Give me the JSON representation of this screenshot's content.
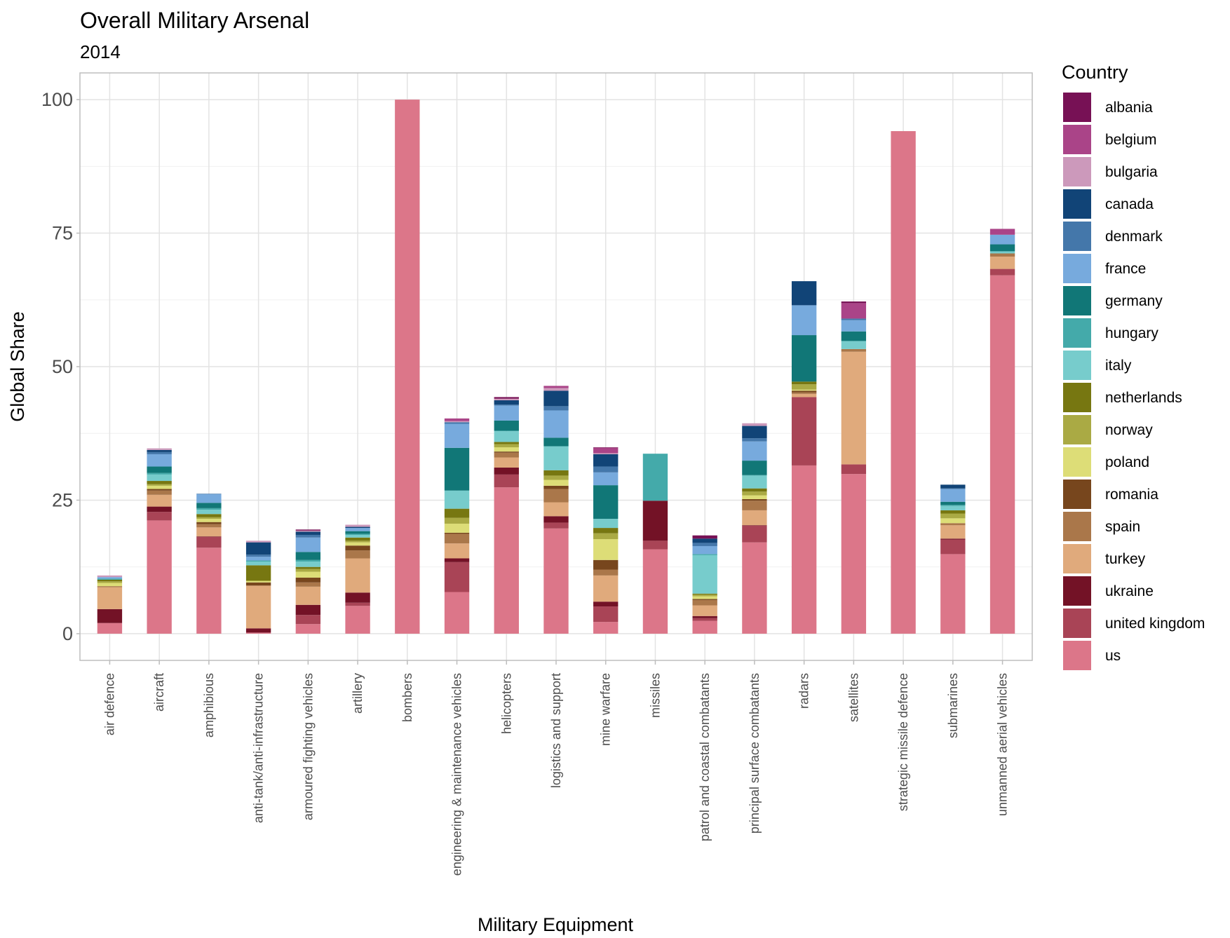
{
  "chart_data": {
    "type": "bar",
    "stacked": true,
    "title": "Overall Military Arsenal",
    "subtitle": "2014",
    "xlabel": "Military Equipment",
    "ylabel": "Global Share",
    "ylim": [
      -5,
      105
    ],
    "yticks": [
      0,
      25,
      50,
      75,
      100
    ],
    "grid": true,
    "legend": {
      "title": "Country",
      "position": "right"
    },
    "categories": [
      "air defence",
      "aircraft",
      "amphibious",
      "anti-tank/anti-infrastructure",
      "armoured fighting vehicles",
      "artillery",
      "bombers",
      "engineering & maintenance vehicles",
      "helicopters",
      "logistics and support",
      "mine warfare",
      "missiles",
      "patrol and coastal combatants",
      "principal surface combatants",
      "radars",
      "satellites",
      "strategic missile defence",
      "submarines",
      "unmanned aerial vehicles"
    ],
    "series": [
      {
        "name": "us",
        "color": "#DC7689",
        "values": [
          2,
          21.2,
          16.1,
          0.2,
          1.8,
          5.2,
          100,
          7.8,
          27.4,
          19.7,
          2.2,
          15.8,
          2.4,
          17.1,
          31.5,
          29.9,
          94.1,
          14.9,
          67.1
        ]
      },
      {
        "name": "united kingdom",
        "color": "#A94456",
        "values": [
          0,
          1.6,
          2,
          0,
          1.7,
          0.6,
          0,
          5.6,
          2.4,
          1.1,
          2.9,
          1.6,
          0.5,
          3.1,
          12.8,
          1.8,
          0,
          2.7,
          1.2
        ]
      },
      {
        "name": "ukraine",
        "color": "#731226",
        "values": [
          2.6,
          1,
          0.1,
          0.8,
          1.9,
          1.9,
          0,
          0.7,
          1.3,
          1.2,
          0.9,
          7.5,
          0.4,
          0.1,
          0,
          0,
          0,
          0.2,
          0
        ]
      },
      {
        "name": "turkey",
        "color": "#E0AA7C",
        "values": [
          4.1,
          2.2,
          1.7,
          8,
          3.4,
          6.4,
          0,
          2.8,
          1.9,
          2.6,
          4.9,
          0,
          2,
          2.8,
          0.6,
          21.1,
          0,
          2.5,
          2.3
        ]
      },
      {
        "name": "spain",
        "color": "#AA774A",
        "values": [
          0.2,
          0.8,
          0.6,
          0,
          0.8,
          1.5,
          0,
          1.8,
          0.9,
          2.5,
          1.1,
          0,
          1,
          1.8,
          0.3,
          0.5,
          0,
          0.4,
          0.6
        ]
      },
      {
        "name": "romania",
        "color": "#77461D",
        "values": [
          0,
          0.3,
          0.4,
          0.6,
          0.9,
          0.9,
          0,
          0.2,
          0.2,
          0.6,
          1.8,
          0,
          0.2,
          0.3,
          0.3,
          0,
          0,
          0,
          0
        ]
      },
      {
        "name": "poland",
        "color": "#DDDD77",
        "values": [
          0.6,
          0.6,
          0.6,
          0.3,
          1.1,
          0.6,
          0,
          1.7,
          0.8,
          1.1,
          3.9,
          0,
          0.5,
          0.7,
          0.2,
          0,
          0,
          0.9,
          0
        ]
      },
      {
        "name": "norway",
        "color": "#AAAA44",
        "values": [
          0.3,
          0.3,
          0.3,
          0,
          0.5,
          0.3,
          0,
          1.1,
          0.6,
          0.8,
          1.1,
          0,
          0.3,
          0.7,
          1,
          0,
          0,
          0.9,
          0
        ]
      },
      {
        "name": "netherlands",
        "color": "#777711",
        "values": [
          0.3,
          0.6,
          0.6,
          2.9,
          0.4,
          0.6,
          0,
          1.7,
          0.4,
          1,
          1,
          0,
          0.2,
          0.6,
          0.5,
          0,
          0,
          0.6,
          0
        ]
      },
      {
        "name": "italy",
        "color": "#77CCCC",
        "values": [
          0,
          1.2,
          0.8,
          0.7,
          1,
          0.5,
          0,
          3.4,
          2,
          4.5,
          1.7,
          0,
          7.2,
          2.4,
          0,
          1.5,
          0,
          0.8,
          0.4
        ]
      },
      {
        "name": "hungary",
        "color": "#44AAAA",
        "values": [
          0.2,
          0.3,
          0.3,
          0.2,
          0.3,
          0.2,
          0,
          0,
          0.1,
          0,
          0,
          8.8,
          0.2,
          0.1,
          0,
          0,
          0,
          0.2,
          0
        ]
      },
      {
        "name": "germany",
        "color": "#117777",
        "values": [
          0,
          1.2,
          1,
          0,
          1.5,
          0.5,
          0,
          8,
          1.9,
          1.6,
          6.3,
          0,
          0,
          2.7,
          8.7,
          1.8,
          0,
          0.6,
          1.3
        ]
      },
      {
        "name": "france",
        "color": "#77AADD",
        "values": [
          0.3,
          2.3,
          1.6,
          0.7,
          2.7,
          0.6,
          0,
          4.5,
          2.8,
          5.1,
          2.4,
          0,
          1.5,
          3.6,
          5.6,
          2.1,
          0,
          2.4,
          1.8
        ]
      },
      {
        "name": "denmark",
        "color": "#4477AA",
        "values": [
          0,
          0.4,
          0.1,
          0.4,
          0.5,
          0,
          0,
          0.3,
          0.2,
          0.8,
          1.1,
          0,
          0.6,
          0.6,
          0,
          0.3,
          0,
          0.1,
          0
        ]
      },
      {
        "name": "canada",
        "color": "#114477",
        "values": [
          0,
          0.4,
          0,
          2.3,
          0.6,
          0.2,
          0,
          0,
          0.8,
          2.9,
          2.3,
          0,
          0.8,
          2.3,
          4.5,
          0,
          0,
          0.7,
          0
        ]
      },
      {
        "name": "bulgaria",
        "color": "#CC99BB",
        "values": [
          0.3,
          0.3,
          0,
          0.3,
          0.2,
          0.4,
          0,
          0.2,
          0.3,
          0.5,
          0.2,
          0,
          0,
          0.5,
          0,
          0,
          0,
          0,
          0
        ]
      },
      {
        "name": "belgium",
        "color": "#AA4488",
        "values": [
          0,
          0,
          0,
          0,
          0,
          0,
          0,
          0.5,
          0,
          0.4,
          1,
          0,
          0,
          0,
          0,
          2.9,
          0,
          0,
          1.1
        ]
      },
      {
        "name": "albania",
        "color": "#771155",
        "values": [
          0,
          0,
          0,
          0,
          0.2,
          0,
          0,
          0,
          0.3,
          0,
          0.1,
          0,
          0.6,
          0,
          0,
          0.3,
          0,
          0,
          0
        ]
      }
    ]
  }
}
